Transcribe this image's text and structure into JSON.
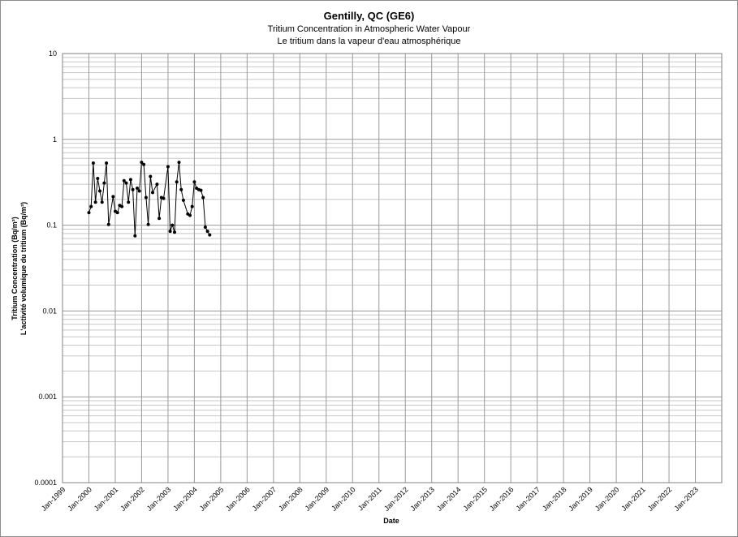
{
  "chart_data": {
    "type": "line",
    "title": "Gentilly, QC (GE6)",
    "subtitle": "Tritium Concentration in Atmospheric Water Vapour",
    "subtitle_fr": "Le tritium dans la vapeur d'eau atmosphérique",
    "xlabel": "Date",
    "ylabel": "Tritium Concentration (Bq/m³)",
    "ylabel_fr": "L'activité volumique du tritium (Bq/m³)",
    "yscale": "log",
    "ylim": [
      0.0001,
      10
    ],
    "ytick_labels": [
      "10",
      "1",
      "0.1",
      "0.01",
      "0.001",
      "0.0001"
    ],
    "xlim": [
      "1999-01",
      "2024-01"
    ],
    "xtick_labels": [
      "Jan-1999",
      "Jan-2000",
      "Jan-2001",
      "Jan-2002",
      "Jan-2003",
      "Jan-2004",
      "Jan-2005",
      "Jan-2006",
      "Jan-2007",
      "Jan-2008",
      "Jan-2009",
      "Jan-2010",
      "Jan-2011",
      "Jan-2012",
      "Jan-2013",
      "Jan-2014",
      "Jan-2015",
      "Jan-2016",
      "Jan-2017",
      "Jan-2018",
      "Jan-2019",
      "Jan-2020",
      "Jan-2021",
      "Jan-2022",
      "Jan-2023"
    ],
    "grid": true,
    "legend": "none",
    "series": [
      {
        "color": "#000000",
        "points": [
          {
            "x": "2000-01-01",
            "y": 0.14
          },
          {
            "x": "2000-02-01",
            "y": 0.165
          },
          {
            "x": "2000-03-01",
            "y": 0.53
          },
          {
            "x": "2000-04-01",
            "y": 0.185
          },
          {
            "x": "2000-05-01",
            "y": 0.35
          },
          {
            "x": "2000-06-01",
            "y": 0.25
          },
          {
            "x": "2000-07-01",
            "y": 0.185
          },
          {
            "x": "2000-08-01",
            "y": 0.31
          },
          {
            "x": "2000-09-01",
            "y": 0.53
          },
          {
            "x": "2000-10-01",
            "y": 0.102
          },
          {
            "x": "2000-12-01",
            "y": 0.215
          },
          {
            "x": "2001-01-01",
            "y": 0.145
          },
          {
            "x": "2001-02-01",
            "y": 0.14
          },
          {
            "x": "2001-03-01",
            "y": 0.17
          },
          {
            "x": "2001-04-01",
            "y": 0.165
          },
          {
            "x": "2001-05-01",
            "y": 0.33
          },
          {
            "x": "2001-06-01",
            "y": 0.31
          },
          {
            "x": "2001-07-01",
            "y": 0.185
          },
          {
            "x": "2001-08-01",
            "y": 0.34
          },
          {
            "x": "2001-09-01",
            "y": 0.26
          },
          {
            "x": "2001-10-01",
            "y": 0.075
          },
          {
            "x": "2001-11-01",
            "y": 0.27
          },
          {
            "x": "2001-12-01",
            "y": 0.25
          },
          {
            "x": "2002-01-01",
            "y": 0.54
          },
          {
            "x": "2002-02-01",
            "y": 0.51
          },
          {
            "x": "2002-03-01",
            "y": 0.21
          },
          {
            "x": "2002-04-01",
            "y": 0.102
          },
          {
            "x": "2002-05-01",
            "y": 0.37
          },
          {
            "x": "2002-06-01",
            "y": 0.24
          },
          {
            "x": "2002-08-01",
            "y": 0.3
          },
          {
            "x": "2002-09-01",
            "y": 0.12
          },
          {
            "x": "2002-10-01",
            "y": 0.21
          },
          {
            "x": "2002-11-01",
            "y": 0.205
          },
          {
            "x": "2003-01-01",
            "y": 0.48
          },
          {
            "x": "2003-02-01",
            "y": 0.085
          },
          {
            "x": "2003-03-01",
            "y": 0.1
          },
          {
            "x": "2003-04-01",
            "y": 0.083
          },
          {
            "x": "2003-05-01",
            "y": 0.32
          },
          {
            "x": "2003-06-01",
            "y": 0.54
          },
          {
            "x": "2003-07-01",
            "y": 0.26
          },
          {
            "x": "2003-08-01",
            "y": 0.195
          },
          {
            "x": "2003-10-01",
            "y": 0.135
          },
          {
            "x": "2003-11-01",
            "y": 0.13
          },
          {
            "x": "2003-12-01",
            "y": 0.165
          },
          {
            "x": "2004-01-01",
            "y": 0.32
          },
          {
            "x": "2004-02-01",
            "y": 0.27
          },
          {
            "x": "2004-03-01",
            "y": 0.26
          },
          {
            "x": "2004-04-01",
            "y": 0.255
          },
          {
            "x": "2004-05-01",
            "y": 0.21
          },
          {
            "x": "2004-06-01",
            "y": 0.095
          },
          {
            "x": "2004-07-01",
            "y": 0.085
          },
          {
            "x": "2004-08-01",
            "y": 0.077
          }
        ]
      }
    ]
  }
}
